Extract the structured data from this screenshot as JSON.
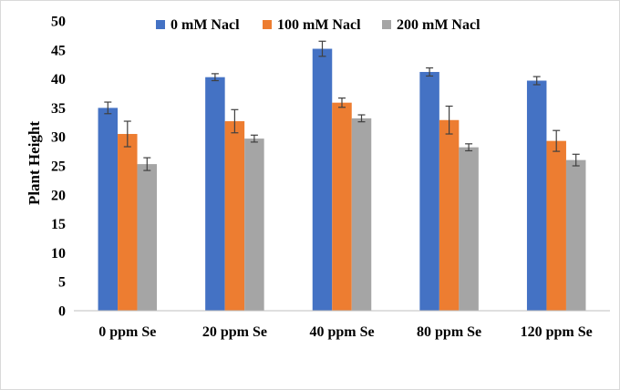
{
  "chart_data": {
    "type": "bar",
    "title": "",
    "xlabel": "",
    "ylabel": "Plant Height",
    "ylim": [
      0,
      50
    ],
    "yticks": [
      0,
      5,
      10,
      15,
      20,
      25,
      30,
      35,
      40,
      45,
      50
    ],
    "grid": false,
    "legend_position": "top",
    "categories": [
      "0 ppm Se",
      "20 ppm Se",
      "40 ppm Se",
      "80 ppm Se",
      "120 ppm Se"
    ],
    "series": [
      {
        "name": "0 mM Nacl",
        "color": "#4472C4",
        "values": [
          35.0,
          40.3,
          45.2,
          41.2,
          39.7
        ],
        "errors": [
          1.0,
          0.6,
          1.3,
          0.7,
          0.7
        ]
      },
      {
        "name": "100 mM Nacl",
        "color": "#ED7D31",
        "values": [
          30.5,
          32.7,
          35.9,
          32.9,
          29.3
        ],
        "errors": [
          2.2,
          2.0,
          0.8,
          2.4,
          1.8
        ]
      },
      {
        "name": "200 mM Nacl",
        "color": "#A5A5A5",
        "values": [
          25.3,
          29.7,
          33.2,
          28.2,
          26.0
        ],
        "errors": [
          1.1,
          0.6,
          0.6,
          0.6,
          1.0
        ]
      }
    ]
  }
}
